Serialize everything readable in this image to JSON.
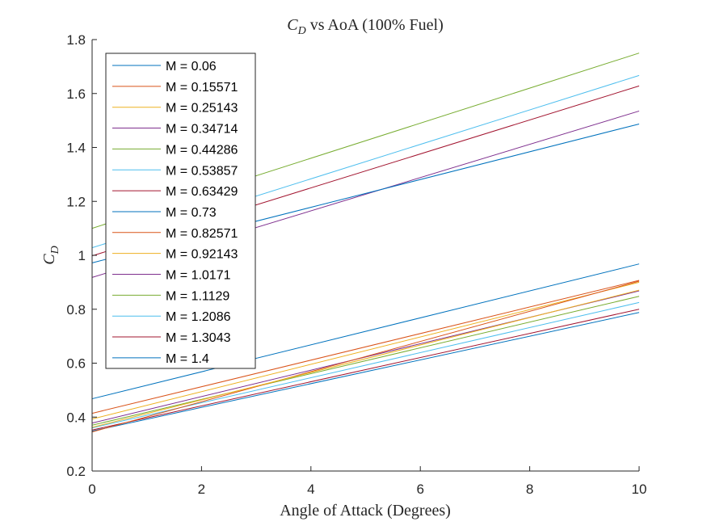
{
  "chart_data": {
    "type": "line",
    "title_main": "C",
    "title_sub": "D",
    "title_rest": " vs AoA (100% Fuel)",
    "xlabel": "Angle of Attack (Degrees)",
    "ylabel_main": "C",
    "ylabel_sub": "D",
    "xlim": [
      0,
      10
    ],
    "ylim": [
      0.2,
      1.8
    ],
    "xticks": [
      "0",
      "2",
      "4",
      "6",
      "8",
      "10"
    ],
    "yticks": [
      "0.2",
      "0.4",
      "0.6",
      "0.8",
      "1",
      "1.2",
      "1.4",
      "1.6",
      "1.8"
    ],
    "grid": false,
    "legend_position": "top-left",
    "x": [
      0,
      10
    ],
    "series": [
      {
        "name": "M = 0.06",
        "color": "#0072BD",
        "values": [
          0.468,
          0.968
        ]
      },
      {
        "name": "M = 0.15571",
        "color": "#D95319",
        "values": [
          0.414,
          0.907
        ]
      },
      {
        "name": "M = 0.25143",
        "color": "#EDB120",
        "values": [
          0.393,
          0.9
        ]
      },
      {
        "name": "M = 0.34714",
        "color": "#7E2F8E",
        "values": [
          0.378,
          0.868
        ]
      },
      {
        "name": "M = 0.44286",
        "color": "#77AC30",
        "values": [
          0.37,
          0.848
        ]
      },
      {
        "name": "M = 0.53857",
        "color": "#4DBEEE",
        "values": [
          0.36,
          0.825
        ]
      },
      {
        "name": "M = 0.63429",
        "color": "#A2142F",
        "values": [
          0.352,
          0.8
        ]
      },
      {
        "name": "M = 0.73",
        "color": "#0072BD",
        "values": [
          0.348,
          0.788
        ]
      },
      {
        "name": "M = 0.82571",
        "color": "#D95319",
        "values": [
          0.345,
          0.904
        ]
      },
      {
        "name": "M = 0.92143",
        "color": "#EDB120",
        "values": [
          0.362,
          0.871
        ]
      },
      {
        "name": "M = 1.0171",
        "color": "#7E2F8E",
        "values": [
          0.918,
          1.535
        ]
      },
      {
        "name": "M = 1.1129",
        "color": "#77AC30",
        "values": [
          1.1,
          1.75
        ]
      },
      {
        "name": "M = 1.2086",
        "color": "#4DBEEE",
        "values": [
          1.028,
          1.667
        ]
      },
      {
        "name": "M = 1.3043",
        "color": "#A2142F",
        "values": [
          0.998,
          1.628
        ]
      },
      {
        "name": "M = 1.4",
        "color": "#0072BD",
        "values": [
          0.972,
          1.487
        ]
      }
    ]
  }
}
